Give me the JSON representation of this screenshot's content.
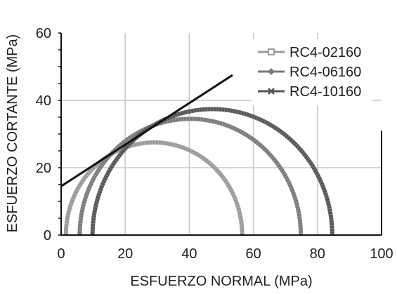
{
  "chart_data": {
    "type": "scatter",
    "title": "",
    "xlabel": "ESFUERZO NORMAL (MPa)",
    "ylabel": "ESFUERZO CORTANTE (MPa)",
    "xlim": [
      0,
      100
    ],
    "ylim": [
      0,
      60
    ],
    "x_ticks": [
      "0",
      "20",
      "40",
      "60",
      "80",
      "100"
    ],
    "y_ticks": [
      "0",
      "20",
      "40",
      "60"
    ],
    "grid": true,
    "legend_position": "top-right",
    "series": [
      {
        "name": "RC4-02160",
        "kind": "mohr-circle",
        "sigma3": 1.5,
        "sigma1": 56.5,
        "color": "#9a9a9a",
        "marker": "square"
      },
      {
        "name": "RC4-06160",
        "kind": "mohr-circle",
        "sigma3": 5.8,
        "sigma1": 74.8,
        "color": "#7a7a7a",
        "marker": "diamond"
      },
      {
        "name": "RC4-10160",
        "kind": "mohr-circle",
        "sigma3": 9.8,
        "sigma1": 84.6,
        "color": "#555555",
        "marker": "x"
      }
    ],
    "envelope": {
      "x": [
        0,
        53.5
      ],
      "y": [
        14.5,
        47.5
      ],
      "color": "#111111"
    }
  }
}
